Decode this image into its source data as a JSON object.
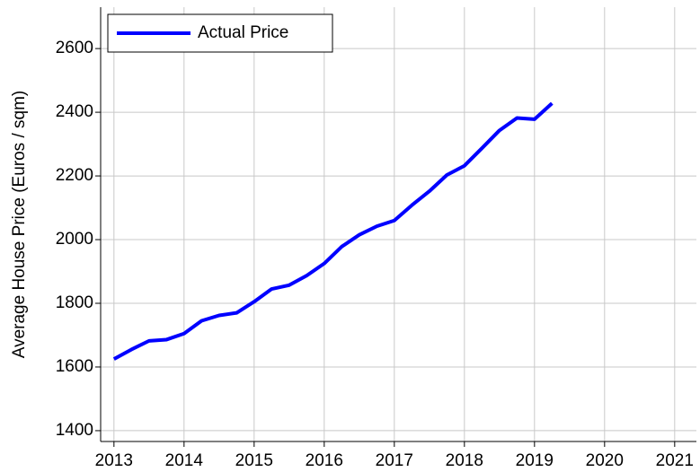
{
  "chart_data": {
    "type": "line",
    "ylabel": "Average House Price (Euros / sqm)",
    "x": [
      2013,
      2013.25,
      2013.5,
      2013.75,
      2014,
      2014.25,
      2014.5,
      2014.75,
      2015,
      2015.25,
      2015.5,
      2015.75,
      2016,
      2016.25,
      2016.5,
      2016.75,
      2017,
      2017.25,
      2017.5,
      2017.75,
      2018,
      2018.25,
      2018.5,
      2018.75,
      2019,
      2019.25
    ],
    "series": [
      {
        "name": "Actual Price",
        "color": "#0000ff",
        "values": [
          1625,
          1655,
          1682,
          1686,
          1705,
          1745,
          1762,
          1770,
          1805,
          1845,
          1857,
          1887,
          1925,
          1978,
          2015,
          2042,
          2060,
          2108,
          2152,
          2203,
          2232,
          2287,
          2343,
          2382,
          2378,
          2428
        ]
      }
    ],
    "xlim": [
      2012.81,
      2021.31
    ],
    "xticks": [
      2013,
      2014,
      2015,
      2016,
      2017,
      2018,
      2019,
      2020,
      2021
    ],
    "ylim": [
      1366,
      2730
    ],
    "yticks": [
      1400,
      1600,
      1800,
      2000,
      2200,
      2400,
      2600
    ],
    "grid": true,
    "legend": "upper left"
  }
}
